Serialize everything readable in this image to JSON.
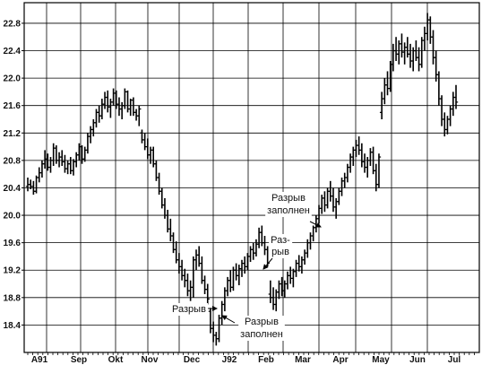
{
  "chart_data": {
    "type": "ohlc",
    "title": "",
    "xlabel": "",
    "ylabel": "",
    "ylim": [
      18.0,
      23.1
    ],
    "y_ticks": [
      18.4,
      18.8,
      19.2,
      19.6,
      20.0,
      20.4,
      20.8,
      21.2,
      21.6,
      22.0,
      22.4,
      22.8
    ],
    "y_tick_labels": [
      "18.4",
      "18.8",
      "19.2",
      "19.6",
      "20.0",
      "20.4",
      "20.8",
      "21.2",
      "21.6",
      "22.0",
      "22.4",
      "22.8"
    ],
    "x_tick_labels": [
      "A91",
      "Sep",
      "Okt",
      "Nov",
      "Dec",
      "J92",
      "Feb",
      "Mar",
      "Apr",
      "May",
      "Jun",
      "Jul"
    ],
    "grid": true,
    "series": [
      {
        "values": [
          [
            20.42,
            20.55,
            20.35,
            20.45
          ],
          [
            20.45,
            20.52,
            20.38,
            20.42
          ],
          [
            20.42,
            20.5,
            20.3,
            20.35
          ],
          [
            20.35,
            20.58,
            20.32,
            20.55
          ],
          [
            20.55,
            20.7,
            20.48,
            20.62
          ],
          [
            20.62,
            20.8,
            20.55,
            20.75
          ],
          [
            20.75,
            20.95,
            20.68,
            20.82
          ],
          [
            20.82,
            20.9,
            20.65,
            20.7
          ],
          [
            20.7,
            20.85,
            20.62,
            20.8
          ],
          [
            20.8,
            21.05,
            20.72,
            20.98
          ],
          [
            20.98,
            21.02,
            20.75,
            20.8
          ],
          [
            20.8,
            20.92,
            20.7,
            20.85
          ],
          [
            20.85,
            20.95,
            20.72,
            20.78
          ],
          [
            20.78,
            20.88,
            20.62,
            20.68
          ],
          [
            20.68,
            20.8,
            20.6,
            20.75
          ],
          [
            20.75,
            20.85,
            20.6,
            20.65
          ],
          [
            20.65,
            20.82,
            20.58,
            20.78
          ],
          [
            20.78,
            20.92,
            20.7,
            20.88
          ],
          [
            20.88,
            21.05,
            20.8,
            21.0
          ],
          [
            21.0,
            21.02,
            20.75,
            20.82
          ],
          [
            20.82,
            21.0,
            20.78,
            20.95
          ],
          [
            20.95,
            21.2,
            20.9,
            21.15
          ],
          [
            21.15,
            21.3,
            21.05,
            21.25
          ],
          [
            21.25,
            21.4,
            21.15,
            21.35
          ],
          [
            21.35,
            21.55,
            21.28,
            21.5
          ],
          [
            21.5,
            21.6,
            21.35,
            21.45
          ],
          [
            21.45,
            21.7,
            21.4,
            21.62
          ],
          [
            21.62,
            21.8,
            21.55,
            21.72
          ],
          [
            21.72,
            21.82,
            21.5,
            21.58
          ],
          [
            21.58,
            21.7,
            21.42,
            21.65
          ],
          [
            21.65,
            21.85,
            21.6,
            21.78
          ],
          [
            21.78,
            21.82,
            21.55,
            21.62
          ],
          [
            21.62,
            21.72,
            21.45,
            21.55
          ],
          [
            21.55,
            21.65,
            21.4,
            21.6
          ],
          [
            21.6,
            21.85,
            21.55,
            21.8
          ],
          [
            21.8,
            21.82,
            21.5,
            21.55
          ],
          [
            21.55,
            21.7,
            21.45,
            21.68
          ],
          [
            21.68,
            21.72,
            21.45,
            21.5
          ],
          [
            21.5,
            21.55,
            21.38,
            21.45
          ],
          [
            21.45,
            21.6,
            21.3,
            21.55
          ],
          [
            21.2,
            21.25,
            21.05,
            21.1
          ],
          [
            21.1,
            21.2,
            20.95,
            21.0
          ],
          [
            21.0,
            21.12,
            20.82,
            20.88
          ],
          [
            20.88,
            21.0,
            20.75,
            20.95
          ],
          [
            20.95,
            21.0,
            20.7,
            20.75
          ],
          [
            20.75,
            20.8,
            20.5,
            20.55
          ],
          [
            20.55,
            20.62,
            20.3,
            20.35
          ],
          [
            20.35,
            20.4,
            20.1,
            20.15
          ],
          [
            20.15,
            20.25,
            19.95,
            20.0
          ],
          [
            20.0,
            20.08,
            19.75,
            19.8
          ],
          [
            19.8,
            19.95,
            19.62,
            19.7
          ],
          [
            19.7,
            19.75,
            19.45,
            19.5
          ],
          [
            19.5,
            19.62,
            19.3,
            19.35
          ],
          [
            19.35,
            19.45,
            19.15,
            19.25
          ],
          [
            19.25,
            19.35,
            19.05,
            19.12
          ],
          [
            19.12,
            19.22,
            18.95,
            19.05
          ],
          [
            19.05,
            19.15,
            18.82,
            18.9
          ],
          [
            18.9,
            19.05,
            18.75,
            18.95
          ],
          [
            18.95,
            19.4,
            18.8,
            19.35
          ],
          [
            19.35,
            19.5,
            19.2,
            19.42
          ],
          [
            19.42,
            19.55,
            19.25,
            19.3
          ],
          [
            19.3,
            19.4,
            19.0,
            19.05
          ],
          [
            19.05,
            19.12,
            18.85,
            18.92
          ],
          [
            18.92,
            19.0,
            18.7,
            18.78
          ],
          [
            18.6,
            18.65,
            18.28,
            18.35
          ],
          [
            18.35,
            18.45,
            18.15,
            18.25
          ],
          [
            18.25,
            18.3,
            18.1,
            18.2
          ],
          [
            18.2,
            18.55,
            18.15,
            18.5
          ],
          [
            18.5,
            18.75,
            18.4,
            18.7
          ],
          [
            18.7,
            18.95,
            18.6,
            18.9
          ],
          [
            18.9,
            19.1,
            18.82,
            19.05
          ],
          [
            19.05,
            19.2,
            18.88,
            18.95
          ],
          [
            18.95,
            19.25,
            18.9,
            19.2
          ],
          [
            19.2,
            19.3,
            19.05,
            19.12
          ],
          [
            19.12,
            19.28,
            18.98,
            19.22
          ],
          [
            19.22,
            19.35,
            19.1,
            19.3
          ],
          [
            19.3,
            19.4,
            19.15,
            19.25
          ],
          [
            19.25,
            19.45,
            19.2,
            19.4
          ],
          [
            19.4,
            19.55,
            19.32,
            19.5
          ],
          [
            19.5,
            19.6,
            19.35,
            19.45
          ],
          [
            19.45,
            19.65,
            19.4,
            19.58
          ],
          [
            19.58,
            19.82,
            19.52,
            19.75
          ],
          [
            19.75,
            19.85,
            19.55,
            19.6
          ],
          [
            19.6,
            19.7,
            19.42,
            19.5
          ],
          [
            19.5,
            19.55,
            19.25,
            19.3
          ],
          [
            18.85,
            19.05,
            18.72,
            18.8
          ],
          [
            18.8,
            18.95,
            18.62,
            18.7
          ],
          [
            18.7,
            18.92,
            18.6,
            18.88
          ],
          [
            18.88,
            19.05,
            18.78,
            19.0
          ],
          [
            19.0,
            19.1,
            18.82,
            18.9
          ],
          [
            18.9,
            19.05,
            18.8,
            19.0
          ],
          [
            19.0,
            19.18,
            18.92,
            19.12
          ],
          [
            19.12,
            19.25,
            19.0,
            19.08
          ],
          [
            19.08,
            19.22,
            18.95,
            19.18
          ],
          [
            19.18,
            19.35,
            19.1,
            19.3
          ],
          [
            19.3,
            19.42,
            19.18,
            19.25
          ],
          [
            19.25,
            19.4,
            19.15,
            19.35
          ],
          [
            19.35,
            19.5,
            19.28,
            19.45
          ],
          [
            19.45,
            19.65,
            19.38,
            19.6
          ],
          [
            19.6,
            19.75,
            19.5,
            19.7
          ],
          [
            19.7,
            19.85,
            19.62,
            19.82
          ],
          [
            19.82,
            20.0,
            19.75,
            19.95
          ],
          [
            19.95,
            20.15,
            19.88,
            20.1
          ],
          [
            20.1,
            20.3,
            20.02,
            20.25
          ],
          [
            20.25,
            20.35,
            20.05,
            20.15
          ],
          [
            20.15,
            20.4,
            20.1,
            20.35
          ],
          [
            20.35,
            20.5,
            20.2,
            20.28
          ],
          [
            20.28,
            20.4,
            20.05,
            20.12
          ],
          [
            20.12,
            20.25,
            19.95,
            20.2
          ],
          [
            20.2,
            20.4,
            20.15,
            20.35
          ],
          [
            20.35,
            20.55,
            20.28,
            20.5
          ],
          [
            20.5,
            20.62,
            20.4,
            20.55
          ],
          [
            20.55,
            20.75,
            20.48,
            20.7
          ],
          [
            20.7,
            20.9,
            20.62,
            20.85
          ],
          [
            20.85,
            21.0,
            20.72,
            20.95
          ],
          [
            20.95,
            21.1,
            20.85,
            21.02
          ],
          [
            21.02,
            21.15,
            20.88,
            20.95
          ],
          [
            20.95,
            21.05,
            20.7,
            20.78
          ],
          [
            20.78,
            20.9,
            20.62,
            20.7
          ],
          [
            20.7,
            20.85,
            20.55,
            20.8
          ],
          [
            20.8,
            20.98,
            20.72,
            20.92
          ],
          [
            20.92,
            21.0,
            20.6,
            20.65
          ],
          [
            20.65,
            20.75,
            20.35,
            20.45
          ],
          [
            20.45,
            20.9,
            20.4,
            20.85
          ],
          [
            21.5,
            21.8,
            21.4,
            21.7
          ],
          [
            21.7,
            22.0,
            21.62,
            21.9
          ],
          [
            21.9,
            22.1,
            21.75,
            21.85
          ],
          [
            21.85,
            22.25,
            21.8,
            22.2
          ],
          [
            22.2,
            22.5,
            22.1,
            22.4
          ],
          [
            22.4,
            22.6,
            22.25,
            22.35
          ],
          [
            22.35,
            22.55,
            22.2,
            22.5
          ],
          [
            22.5,
            22.65,
            22.3,
            22.38
          ],
          [
            22.38,
            22.52,
            22.2,
            22.45
          ],
          [
            22.45,
            22.6,
            22.3,
            22.35
          ],
          [
            22.35,
            22.5,
            22.15,
            22.25
          ],
          [
            22.25,
            22.45,
            22.1,
            22.4
          ],
          [
            22.4,
            22.55,
            22.25,
            22.3
          ],
          [
            22.3,
            22.45,
            22.1,
            22.2
          ],
          [
            22.2,
            22.6,
            22.15,
            22.55
          ],
          [
            22.55,
            22.75,
            22.4,
            22.65
          ],
          [
            22.65,
            22.95,
            22.55,
            22.85
          ],
          [
            22.85,
            22.9,
            22.5,
            22.6
          ],
          [
            22.6,
            22.7,
            22.2,
            22.3
          ],
          [
            22.3,
            22.4,
            21.95,
            22.05
          ],
          [
            22.05,
            22.1,
            21.6,
            21.7
          ],
          [
            21.7,
            21.75,
            21.3,
            21.4
          ],
          [
            21.4,
            21.5,
            21.15,
            21.25
          ],
          [
            21.25,
            21.45,
            21.18,
            21.4
          ],
          [
            21.4,
            21.6,
            21.3,
            21.55
          ],
          [
            21.55,
            21.8,
            21.45,
            21.72
          ],
          [
            21.72,
            21.9,
            21.55,
            21.65
          ]
        ]
      }
    ],
    "annotations": [
      {
        "text_lines": [
          "Разрыв",
          "заполнен"
        ],
        "value": 19.95
      },
      {
        "text_lines": [
          "Раз-",
          "рыв"
        ],
        "value": 19.25
      },
      {
        "text_lines": [
          "Разрыв"
        ],
        "value": 18.68
      },
      {
        "text_lines": [
          "Разрыв",
          "заполнен"
        ],
        "value": 18.62
      }
    ]
  }
}
